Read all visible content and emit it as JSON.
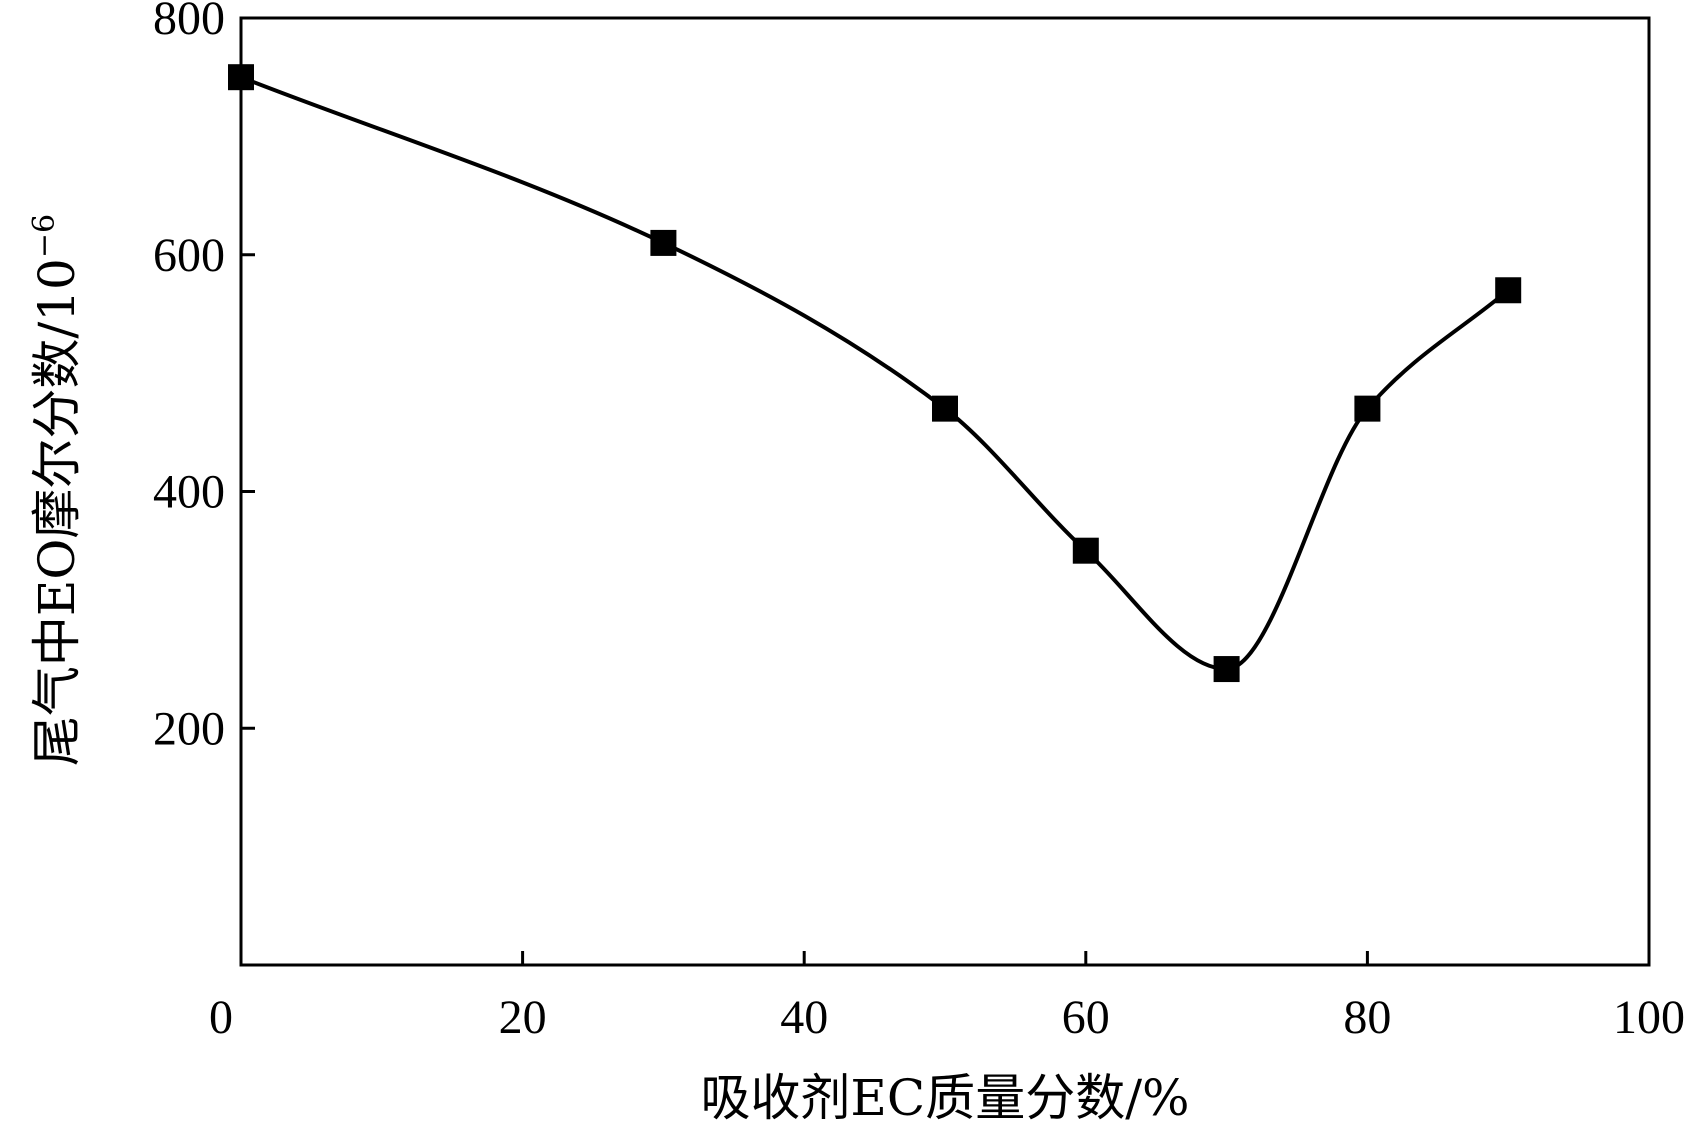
{
  "chart_data": {
    "type": "line",
    "xlabel": "吸收剂EC质量分数/%",
    "ylabel_main": "尾气中EO摩尔分数/10",
    "ylabel_exp": "−6",
    "xlim": [
      0,
      100
    ],
    "ylim": [
      0,
      800
    ],
    "x_ticks": [
      0,
      20,
      40,
      60,
      80,
      100
    ],
    "x_tick_labels": [
      "0",
      "20",
      "40",
      "60",
      "80",
      "100"
    ],
    "y_ticks": [
      200,
      400,
      600,
      800
    ],
    "y_tick_labels": [
      "200",
      "400",
      "600",
      "800"
    ],
    "grid": false,
    "marker": "square",
    "line_color": "#000000",
    "series": [
      {
        "x": [
          0,
          30,
          50,
          60,
          70,
          80,
          90
        ],
        "y": [
          750,
          610,
          470,
          350,
          250,
          470,
          570
        ]
      }
    ]
  }
}
